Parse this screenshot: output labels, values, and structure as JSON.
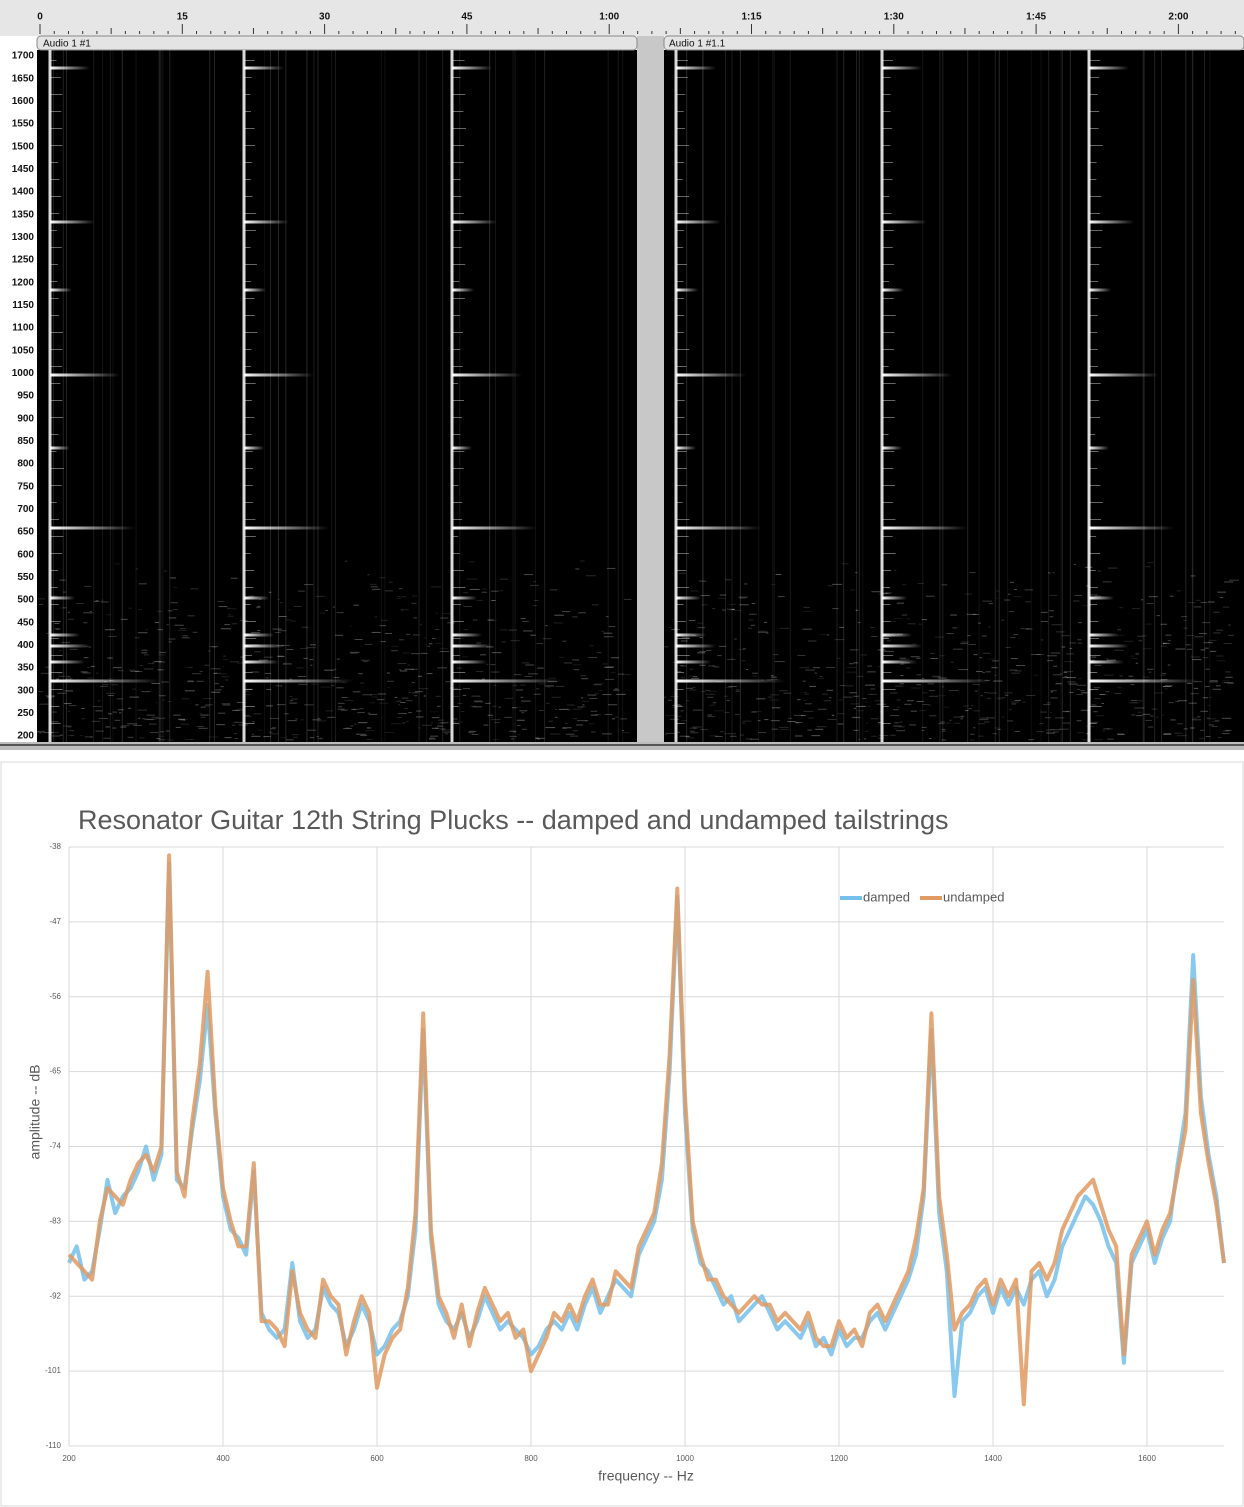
{
  "spectrogram": {
    "ruler_labels": [
      "0",
      "15",
      "30",
      "45",
      "1:00",
      "1:15",
      "1:30",
      "1:45",
      "2:00"
    ],
    "tracks": [
      "Audio 1 #1",
      "Audio 1 #1.1"
    ],
    "frequency_labels": [
      1700,
      1650,
      1600,
      1550,
      1500,
      1450,
      1400,
      1350,
      1300,
      1250,
      1200,
      1150,
      1100,
      1050,
      1000,
      950,
      900,
      850,
      800,
      750,
      700,
      650,
      600,
      550,
      500,
      450,
      400,
      350,
      300,
      250,
      200
    ]
  },
  "chart_data": {
    "type": "line",
    "title": "Resonator Guitar 12th String Plucks -- damped and undamped tailstrings",
    "x_label": "frequency -- Hz",
    "y_label": "amplitude -- dB",
    "xlim": [
      200,
      1700
    ],
    "ylim": [
      -110,
      -38
    ],
    "xticks": [
      200,
      400,
      600,
      800,
      1000,
      1200,
      1400,
      1600
    ],
    "yticks": [
      -38,
      -47,
      -56,
      -65,
      -74,
      -83,
      -92,
      -101,
      -110
    ],
    "grid": true,
    "legend": "top-right",
    "x": [
      200,
      210,
      220,
      230,
      240,
      250,
      260,
      270,
      280,
      290,
      300,
      310,
      320,
      330,
      340,
      350,
      360,
      370,
      380,
      390,
      400,
      410,
      420,
      430,
      440,
      450,
      460,
      470,
      480,
      490,
      500,
      510,
      520,
      530,
      540,
      550,
      560,
      570,
      580,
      590,
      600,
      610,
      620,
      630,
      640,
      650,
      660,
      670,
      680,
      690,
      700,
      710,
      720,
      730,
      740,
      750,
      760,
      770,
      780,
      790,
      800,
      810,
      820,
      830,
      840,
      850,
      860,
      870,
      880,
      890,
      900,
      910,
      920,
      930,
      940,
      950,
      960,
      970,
      980,
      990,
      1000,
      1010,
      1020,
      1030,
      1040,
      1050,
      1060,
      1070,
      1080,
      1090,
      1100,
      1110,
      1120,
      1130,
      1140,
      1150,
      1160,
      1170,
      1180,
      1190,
      1200,
      1210,
      1220,
      1230,
      1240,
      1250,
      1260,
      1270,
      1280,
      1290,
      1300,
      1310,
      1320,
      1330,
      1340,
      1350,
      1360,
      1370,
      1380,
      1390,
      1400,
      1410,
      1420,
      1430,
      1440,
      1450,
      1460,
      1470,
      1480,
      1490,
      1500,
      1510,
      1520,
      1530,
      1540,
      1550,
      1560,
      1570,
      1580,
      1590,
      1600,
      1610,
      1620,
      1630,
      1640,
      1650,
      1660,
      1670,
      1680,
      1690,
      1700
    ],
    "series": [
      {
        "name": "damped",
        "color": "#74c0ea",
        "values": [
          -88,
          -86,
          -90,
          -89,
          -84,
          -78,
          -82,
          -80,
          -79,
          -77,
          -74,
          -78,
          -75,
          -40,
          -78,
          -79,
          -72,
          -66,
          -57,
          -70,
          -80,
          -84,
          -85,
          -87,
          -77,
          -94,
          -96,
          -97,
          -96,
          -88,
          -95,
          -97,
          -96,
          -91,
          -93,
          -94,
          -98,
          -96,
          -93,
          -95,
          -99,
          -98,
          -96,
          -95,
          -92,
          -84,
          -60,
          -85,
          -93,
          -95,
          -96,
          -94,
          -97,
          -95,
          -92,
          -94,
          -96,
          -95,
          -96,
          -97,
          -99,
          -98,
          -96,
          -95,
          -96,
          -94,
          -96,
          -93,
          -91,
          -94,
          -92,
          -90,
          -91,
          -92,
          -87,
          -85,
          -83,
          -78,
          -65,
          -44,
          -70,
          -84,
          -88,
          -89,
          -91,
          -93,
          -92,
          -95,
          -94,
          -93,
          -92,
          -94,
          -96,
          -95,
          -96,
          -97,
          -95,
          -98,
          -97,
          -99,
          -96,
          -98,
          -97,
          -97,
          -95,
          -94,
          -96,
          -94,
          -92,
          -90,
          -87,
          -80,
          -60,
          -82,
          -89,
          -104,
          -95,
          -94,
          -92,
          -91,
          -94,
          -91,
          -93,
          -91,
          -93,
          -90,
          -89,
          -92,
          -90,
          -86,
          -84,
          -82,
          -80,
          -81,
          -83,
          -86,
          -88,
          -100,
          -88,
          -86,
          -84,
          -88,
          -85,
          -83,
          -76,
          -70,
          -51,
          -68,
          -75,
          -80,
          -88
        ]
      },
      {
        "name": "undamped",
        "color": "#e09a62",
        "values": [
          -87,
          -88,
          -89,
          -90,
          -83,
          -79,
          -80,
          -81,
          -78,
          -76,
          -75,
          -77,
          -74,
          -39,
          -77,
          -80,
          -71,
          -64,
          -53,
          -69,
          -79,
          -83,
          -86,
          -86,
          -76,
          -95,
          -95,
          -96,
          -98,
          -89,
          -94,
          -96,
          -97,
          -90,
          -92,
          -93,
          -99,
          -95,
          -92,
          -94,
          -103,
          -99,
          -97,
          -96,
          -91,
          -82,
          -58,
          -84,
          -92,
          -94,
          -97,
          -93,
          -98,
          -94,
          -91,
          -93,
          -95,
          -94,
          -97,
          -96,
          -101,
          -99,
          -97,
          -94,
          -95,
          -93,
          -95,
          -92,
          -90,
          -93,
          -93,
          -89,
          -90,
          -91,
          -86,
          -84,
          -82,
          -76,
          -63,
          -43,
          -68,
          -83,
          -87,
          -90,
          -90,
          -92,
          -93,
          -94,
          -93,
          -92,
          -93,
          -93,
          -95,
          -94,
          -95,
          -96,
          -94,
          -97,
          -98,
          -98,
          -95,
          -97,
          -96,
          -98,
          -94,
          -93,
          -95,
          -93,
          -91,
          -89,
          -85,
          -79,
          -58,
          -80,
          -87,
          -96,
          -94,
          -93,
          -91,
          -90,
          -93,
          -90,
          -92,
          -90,
          -105,
          -89,
          -88,
          -90,
          -88,
          -84,
          -82,
          -80,
          -79,
          -78,
          -81,
          -84,
          -86,
          -99,
          -87,
          -85,
          -83,
          -87,
          -84,
          -82,
          -77,
          -72,
          -54,
          -70,
          -76,
          -81,
          -88
        ]
      }
    ]
  }
}
